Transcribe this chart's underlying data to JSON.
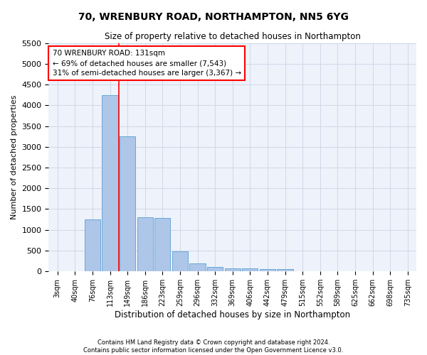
{
  "title": "70, WRENBURY ROAD, NORTHAMPTON, NN5 6YG",
  "subtitle": "Size of property relative to detached houses in Northampton",
  "xlabel": "Distribution of detached houses by size in Northampton",
  "ylabel": "Number of detached properties",
  "footer_line1": "Contains HM Land Registry data © Crown copyright and database right 2024.",
  "footer_line2": "Contains public sector information licensed under the Open Government Licence v3.0.",
  "bar_labels": [
    "3sqm",
    "40sqm",
    "76sqm",
    "113sqm",
    "149sqm",
    "186sqm",
    "223sqm",
    "259sqm",
    "296sqm",
    "332sqm",
    "369sqm",
    "406sqm",
    "442sqm",
    "479sqm",
    "515sqm",
    "552sqm",
    "589sqm",
    "625sqm",
    "662sqm",
    "698sqm",
    "735sqm"
  ],
  "bar_values": [
    0,
    0,
    1250,
    4250,
    3250,
    1300,
    1280,
    475,
    200,
    100,
    80,
    75,
    55,
    50,
    0,
    0,
    0,
    0,
    0,
    0,
    0
  ],
  "bar_color": "#aec6e8",
  "bar_edge_color": "#5a9fd4",
  "grid_color": "#d0d8e8",
  "background_color": "#eef2fa",
  "annotation_text_line1": "70 WRENBURY ROAD: 131sqm",
  "annotation_text_line2": "← 69% of detached houses are smaller (7,543)",
  "annotation_text_line3": "31% of semi-detached houses are larger (3,367) →",
  "red_line_x": 3.5,
  "ylim": [
    0,
    5500
  ],
  "yticks": [
    0,
    500,
    1000,
    1500,
    2000,
    2500,
    3000,
    3500,
    4000,
    4500,
    5000,
    5500
  ]
}
